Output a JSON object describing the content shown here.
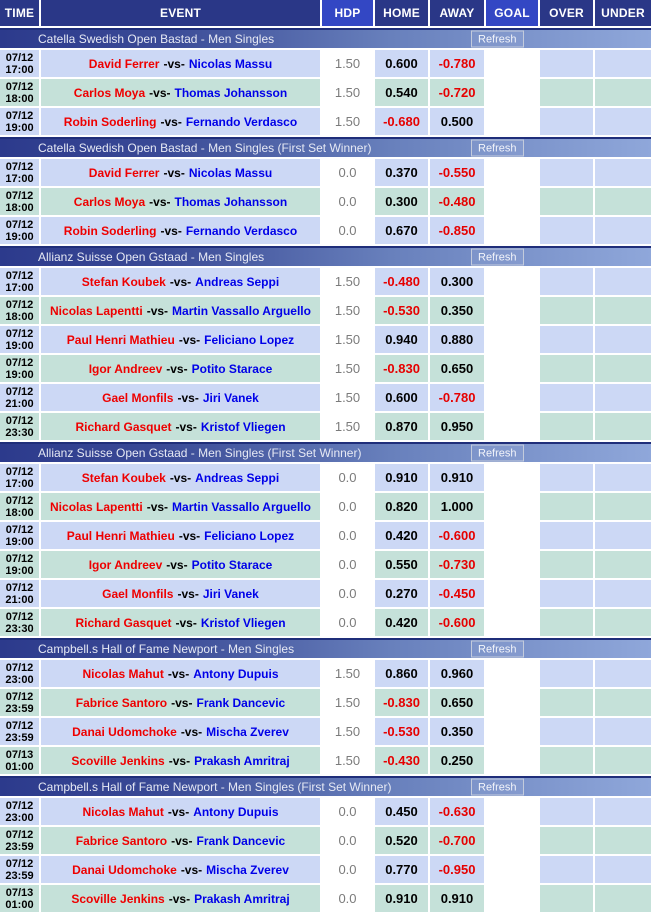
{
  "colors": {
    "header_navy": "#2a3787",
    "header_bright_blue": "#3347c4",
    "section_gradient_start": "#2c3a8c",
    "section_gradient_end": "#8fa7da",
    "row_blue": "#ccd8f5",
    "row_green": "#c5e1d9",
    "home_player_red": "#ee0000",
    "away_player_blue": "#0000e8",
    "negative_odds_red": "#e60000",
    "hdp_gray": "#7b7b7b"
  },
  "columns": [
    {
      "label": "TIME",
      "bright": false
    },
    {
      "label": "EVENT",
      "bright": false
    },
    {
      "label": "HDP",
      "bright": true
    },
    {
      "label": "HOME",
      "bright": false
    },
    {
      "label": "AWAY",
      "bright": false
    },
    {
      "label": "GOAL",
      "bright": true
    },
    {
      "label": "OVER",
      "bright": false
    },
    {
      "label": "UNDER",
      "bright": false
    }
  ],
  "vs_label": "-vs-",
  "refresh_label": "Refresh",
  "sections": [
    {
      "title": "Catella Swedish Open Bastad - Men Singles",
      "rows": [
        {
          "date": "07/12",
          "time": "17:00",
          "home": "David Ferrer",
          "away": "Nicolas Massu",
          "hdp": "1.50",
          "home_odds": "0.600",
          "away_odds": "-0.780"
        },
        {
          "date": "07/12",
          "time": "18:00",
          "home": "Carlos Moya",
          "away": "Thomas Johansson",
          "hdp": "1.50",
          "home_odds": "0.540",
          "away_odds": "-0.720"
        },
        {
          "date": "07/12",
          "time": "19:00",
          "home": "Robin Soderling",
          "away": "Fernando Verdasco",
          "hdp": "1.50",
          "home_odds": "-0.680",
          "away_odds": "0.500"
        }
      ]
    },
    {
      "title": "Catella Swedish Open Bastad - Men Singles (First Set Winner)",
      "rows": [
        {
          "date": "07/12",
          "time": "17:00",
          "home": "David Ferrer",
          "away": "Nicolas Massu",
          "hdp": "0.0",
          "home_odds": "0.370",
          "away_odds": "-0.550"
        },
        {
          "date": "07/12",
          "time": "18:00",
          "home": "Carlos Moya",
          "away": "Thomas Johansson",
          "hdp": "0.0",
          "home_odds": "0.300",
          "away_odds": "-0.480"
        },
        {
          "date": "07/12",
          "time": "19:00",
          "home": "Robin Soderling",
          "away": "Fernando Verdasco",
          "hdp": "0.0",
          "home_odds": "0.670",
          "away_odds": "-0.850"
        }
      ]
    },
    {
      "title": "Allianz Suisse Open Gstaad - Men Singles",
      "rows": [
        {
          "date": "07/12",
          "time": "17:00",
          "home": "Stefan Koubek",
          "away": "Andreas Seppi",
          "hdp": "1.50",
          "home_odds": "-0.480",
          "away_odds": "0.300"
        },
        {
          "date": "07/12",
          "time": "18:00",
          "home": "Nicolas Lapentti",
          "away": "Martin Vassallo Arguello",
          "hdp": "1.50",
          "home_odds": "-0.530",
          "away_odds": "0.350"
        },
        {
          "date": "07/12",
          "time": "19:00",
          "home": "Paul Henri Mathieu",
          "away": "Feliciano Lopez",
          "hdp": "1.50",
          "home_odds": "0.940",
          "away_odds": "0.880"
        },
        {
          "date": "07/12",
          "time": "19:00",
          "home": "Igor Andreev",
          "away": "Potito Starace",
          "hdp": "1.50",
          "home_odds": "-0.830",
          "away_odds": "0.650"
        },
        {
          "date": "07/12",
          "time": "21:00",
          "home": "Gael Monfils",
          "away": "Jiri Vanek",
          "hdp": "1.50",
          "home_odds": "0.600",
          "away_odds": "-0.780"
        },
        {
          "date": "07/12",
          "time": "23:30",
          "home": "Richard Gasquet",
          "away": "Kristof Vliegen",
          "hdp": "1.50",
          "home_odds": "0.870",
          "away_odds": "0.950"
        }
      ]
    },
    {
      "title": "Allianz Suisse Open Gstaad - Men Singles (First Set Winner)",
      "rows": [
        {
          "date": "07/12",
          "time": "17:00",
          "home": "Stefan Koubek",
          "away": "Andreas Seppi",
          "hdp": "0.0",
          "home_odds": "0.910",
          "away_odds": "0.910"
        },
        {
          "date": "07/12",
          "time": "18:00",
          "home": "Nicolas Lapentti",
          "away": "Martin Vassallo Arguello",
          "hdp": "0.0",
          "home_odds": "0.820",
          "away_odds": "1.000"
        },
        {
          "date": "07/12",
          "time": "19:00",
          "home": "Paul Henri Mathieu",
          "away": "Feliciano Lopez",
          "hdp": "0.0",
          "home_odds": "0.420",
          "away_odds": "-0.600"
        },
        {
          "date": "07/12",
          "time": "19:00",
          "home": "Igor Andreev",
          "away": "Potito Starace",
          "hdp": "0.0",
          "home_odds": "0.550",
          "away_odds": "-0.730"
        },
        {
          "date": "07/12",
          "time": "21:00",
          "home": "Gael Monfils",
          "away": "Jiri Vanek",
          "hdp": "0.0",
          "home_odds": "0.270",
          "away_odds": "-0.450"
        },
        {
          "date": "07/12",
          "time": "23:30",
          "home": "Richard Gasquet",
          "away": "Kristof Vliegen",
          "hdp": "0.0",
          "home_odds": "0.420",
          "away_odds": "-0.600"
        }
      ]
    },
    {
      "title": "Campbell.s Hall of Fame Newport - Men Singles",
      "rows": [
        {
          "date": "07/12",
          "time": "23:00",
          "home": "Nicolas Mahut",
          "away": "Antony Dupuis",
          "hdp": "1.50",
          "home_odds": "0.860",
          "away_odds": "0.960"
        },
        {
          "date": "07/12",
          "time": "23:59",
          "home": "Fabrice Santoro",
          "away": "Frank Dancevic",
          "hdp": "1.50",
          "home_odds": "-0.830",
          "away_odds": "0.650"
        },
        {
          "date": "07/12",
          "time": "23:59",
          "home": "Danai Udomchoke",
          "away": "Mischa Zverev",
          "hdp": "1.50",
          "home_odds": "-0.530",
          "away_odds": "0.350"
        },
        {
          "date": "07/13",
          "time": "01:00",
          "home": "Scoville Jenkins",
          "away": "Prakash Amritraj",
          "hdp": "1.50",
          "home_odds": "-0.430",
          "away_odds": "0.250"
        }
      ]
    },
    {
      "title": "Campbell.s Hall of Fame Newport - Men Singles (First Set Winner)",
      "rows": [
        {
          "date": "07/12",
          "time": "23:00",
          "home": "Nicolas Mahut",
          "away": "Antony Dupuis",
          "hdp": "0.0",
          "home_odds": "0.450",
          "away_odds": "-0.630"
        },
        {
          "date": "07/12",
          "time": "23:59",
          "home": "Fabrice Santoro",
          "away": "Frank Dancevic",
          "hdp": "0.0",
          "home_odds": "0.520",
          "away_odds": "-0.700"
        },
        {
          "date": "07/12",
          "time": "23:59",
          "home": "Danai Udomchoke",
          "away": "Mischa Zverev",
          "hdp": "0.0",
          "home_odds": "0.770",
          "away_odds": "-0.950"
        },
        {
          "date": "07/13",
          "time": "01:00",
          "home": "Scoville Jenkins",
          "away": "Prakash Amritraj",
          "hdp": "0.0",
          "home_odds": "0.910",
          "away_odds": "0.910"
        }
      ]
    }
  ]
}
